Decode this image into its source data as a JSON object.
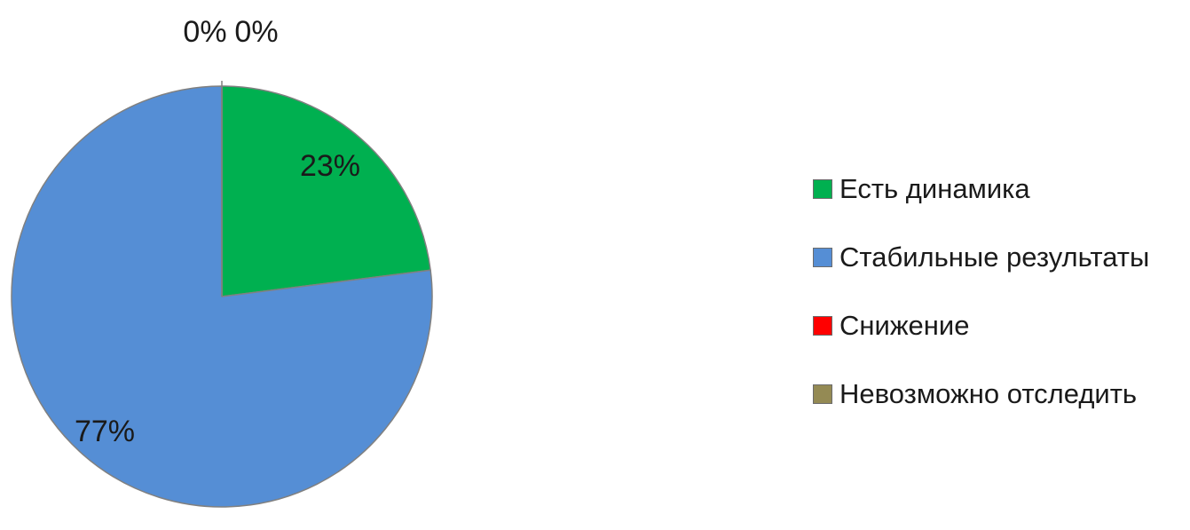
{
  "chart_data": {
    "type": "pie",
    "start_angle_deg": 0,
    "direction": "clockwise",
    "legend_position": "right",
    "slices": [
      {
        "name": "Есть динамика",
        "value": 23,
        "label": "23%",
        "color": "#00B050"
      },
      {
        "name": "Стабильные результаты",
        "value": 77,
        "label": "77%",
        "color": "#558ED5"
      },
      {
        "name": "Снижение",
        "value": 0,
        "label": "0%",
        "color": "#FF0000"
      },
      {
        "name": "Невозможно отследить",
        "value": 0,
        "label": "0%",
        "color": "#948A54"
      }
    ]
  }
}
